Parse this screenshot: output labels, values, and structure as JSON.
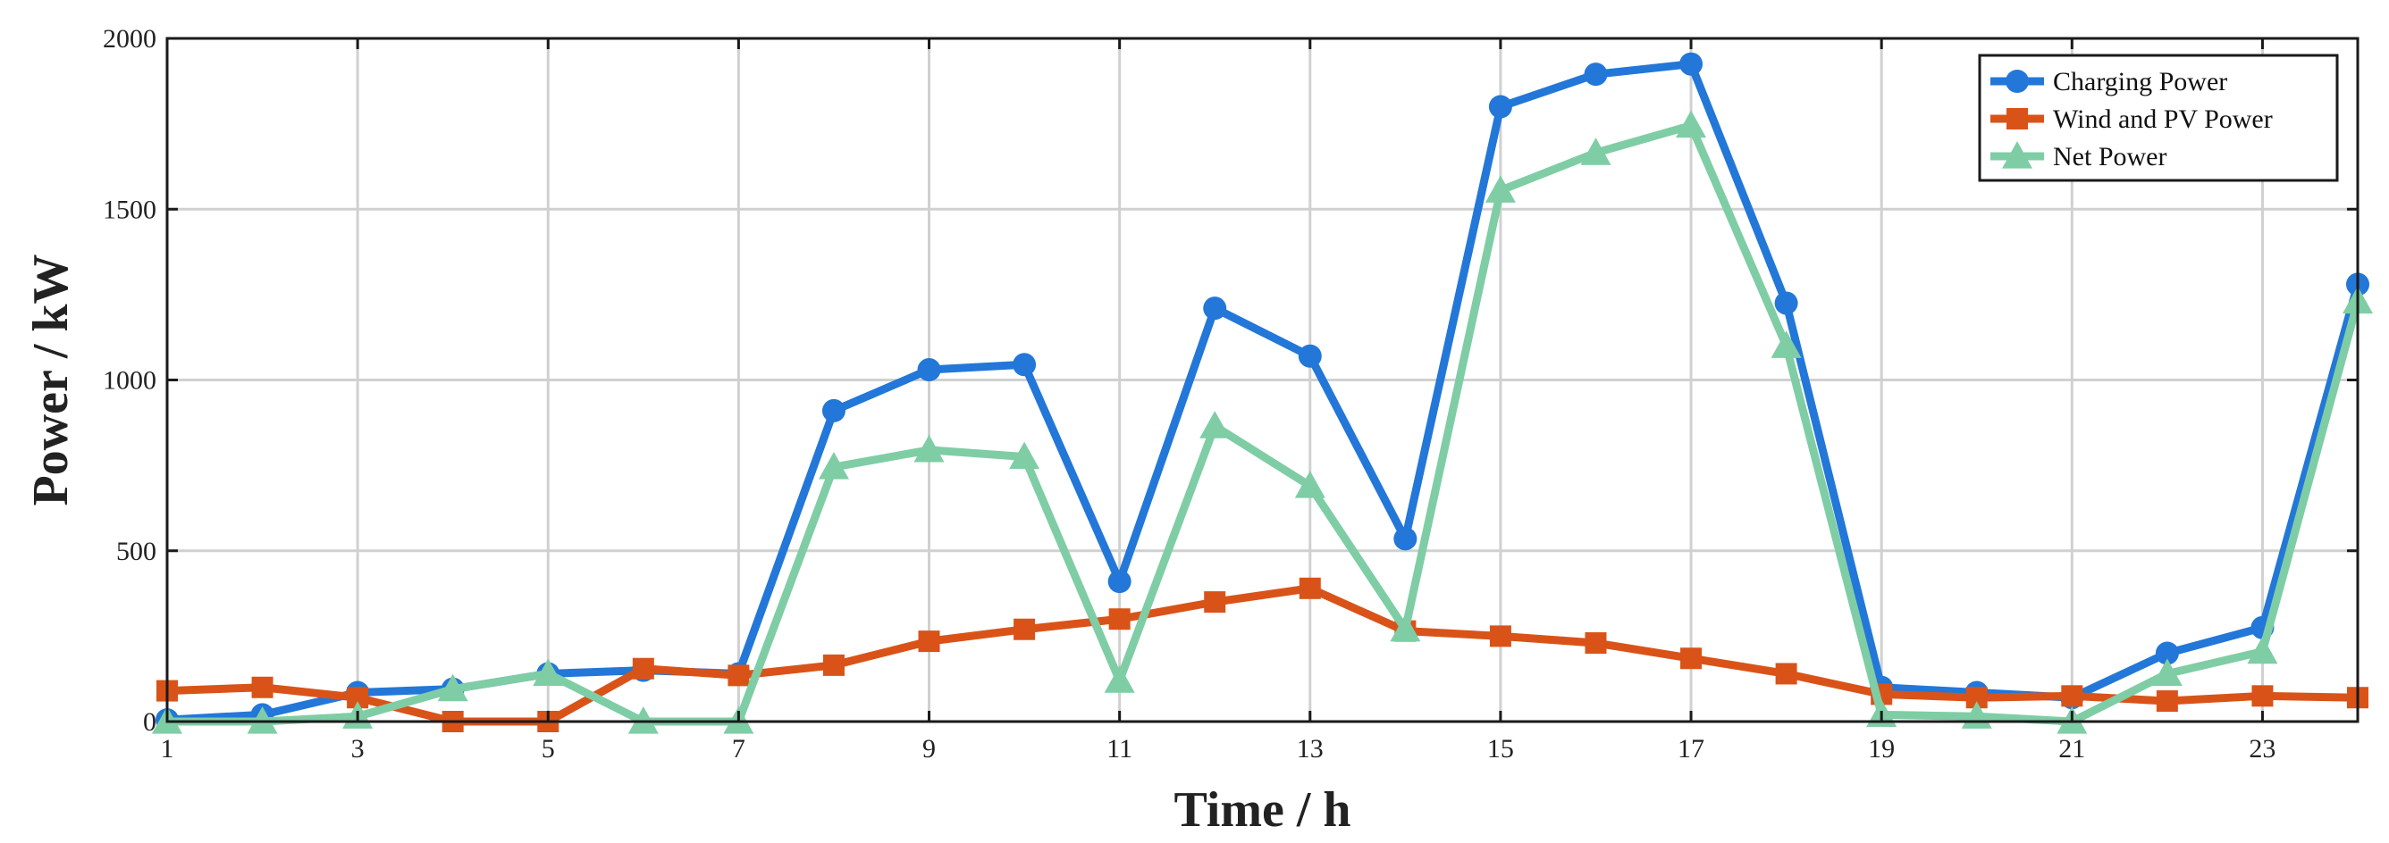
{
  "chart_data": {
    "type": "line",
    "xlabel": "Time / h",
    "ylabel": "Power / kW",
    "xlim": [
      1,
      24
    ],
    "ylim": [
      0,
      2000
    ],
    "xticks": [
      1,
      3,
      5,
      7,
      9,
      11,
      13,
      15,
      17,
      19,
      21,
      23
    ],
    "yticks": [
      0,
      500,
      1000,
      1500,
      2000
    ],
    "grid": true,
    "legend_position": "top-right",
    "x": [
      1,
      2,
      3,
      4,
      5,
      6,
      7,
      8,
      9,
      10,
      11,
      12,
      13,
      14,
      15,
      16,
      17,
      18,
      19,
      20,
      21,
      22,
      23,
      24
    ],
    "series": [
      {
        "name": "Charging Power",
        "color": "#2277d8",
        "marker": "circle",
        "values": [
          5,
          20,
          85,
          95,
          140,
          150,
          140,
          910,
          1030,
          1045,
          410,
          1210,
          1070,
          535,
          1800,
          1895,
          1925,
          1225,
          100,
          85,
          70,
          200,
          275,
          1280
        ]
      },
      {
        "name": "Wind and PV Power",
        "color": "#d95319",
        "marker": "square",
        "values": [
          90,
          100,
          70,
          0,
          0,
          155,
          135,
          165,
          235,
          270,
          300,
          350,
          390,
          265,
          250,
          230,
          185,
          140,
          80,
          70,
          75,
          60,
          75,
          70
        ]
      },
      {
        "name": "Net Power",
        "color": "#7fcda5",
        "marker": "triangle",
        "values": [
          0,
          0,
          15,
          95,
          140,
          0,
          0,
          745,
          795,
          775,
          120,
          865,
          690,
          270,
          1555,
          1665,
          1745,
          1100,
          20,
          15,
          0,
          140,
          205,
          1230
        ]
      }
    ]
  }
}
